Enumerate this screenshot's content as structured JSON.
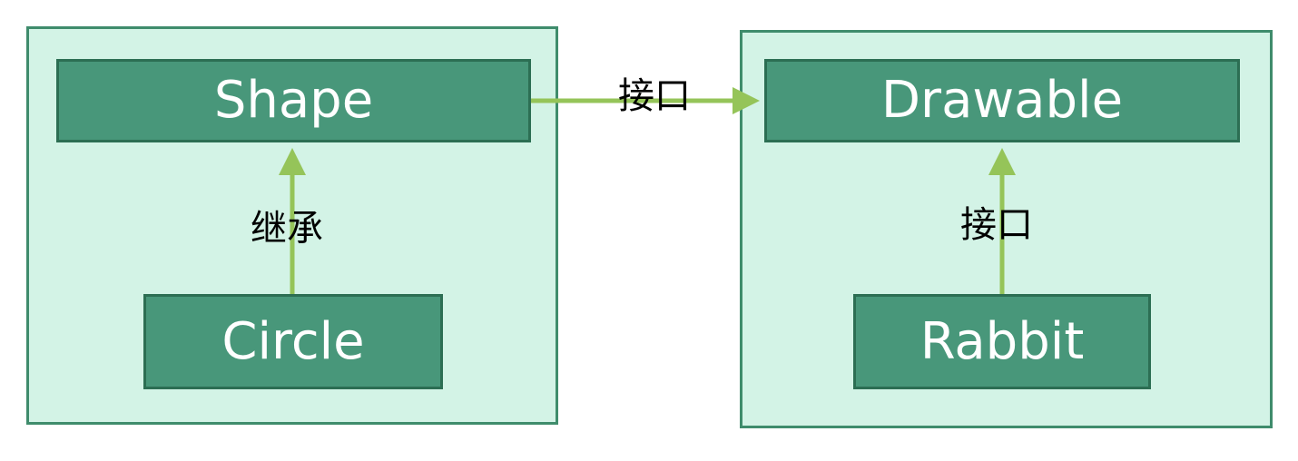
{
  "colors": {
    "group_fill": "#d3f3e6",
    "group_border": "#3f8c6c",
    "node_fill": "#48977a",
    "node_border": "#2c6e53",
    "node_text": "#ffffff",
    "arrow": "#95c459"
  },
  "groups": [
    {
      "nodes": {
        "parent": "Shape",
        "child": "Circle"
      },
      "relation_label": "继承"
    },
    {
      "nodes": {
        "parent": "Drawable",
        "child": "Rabbit"
      },
      "relation_label": "接口"
    }
  ],
  "cross_relation_label": "接口"
}
